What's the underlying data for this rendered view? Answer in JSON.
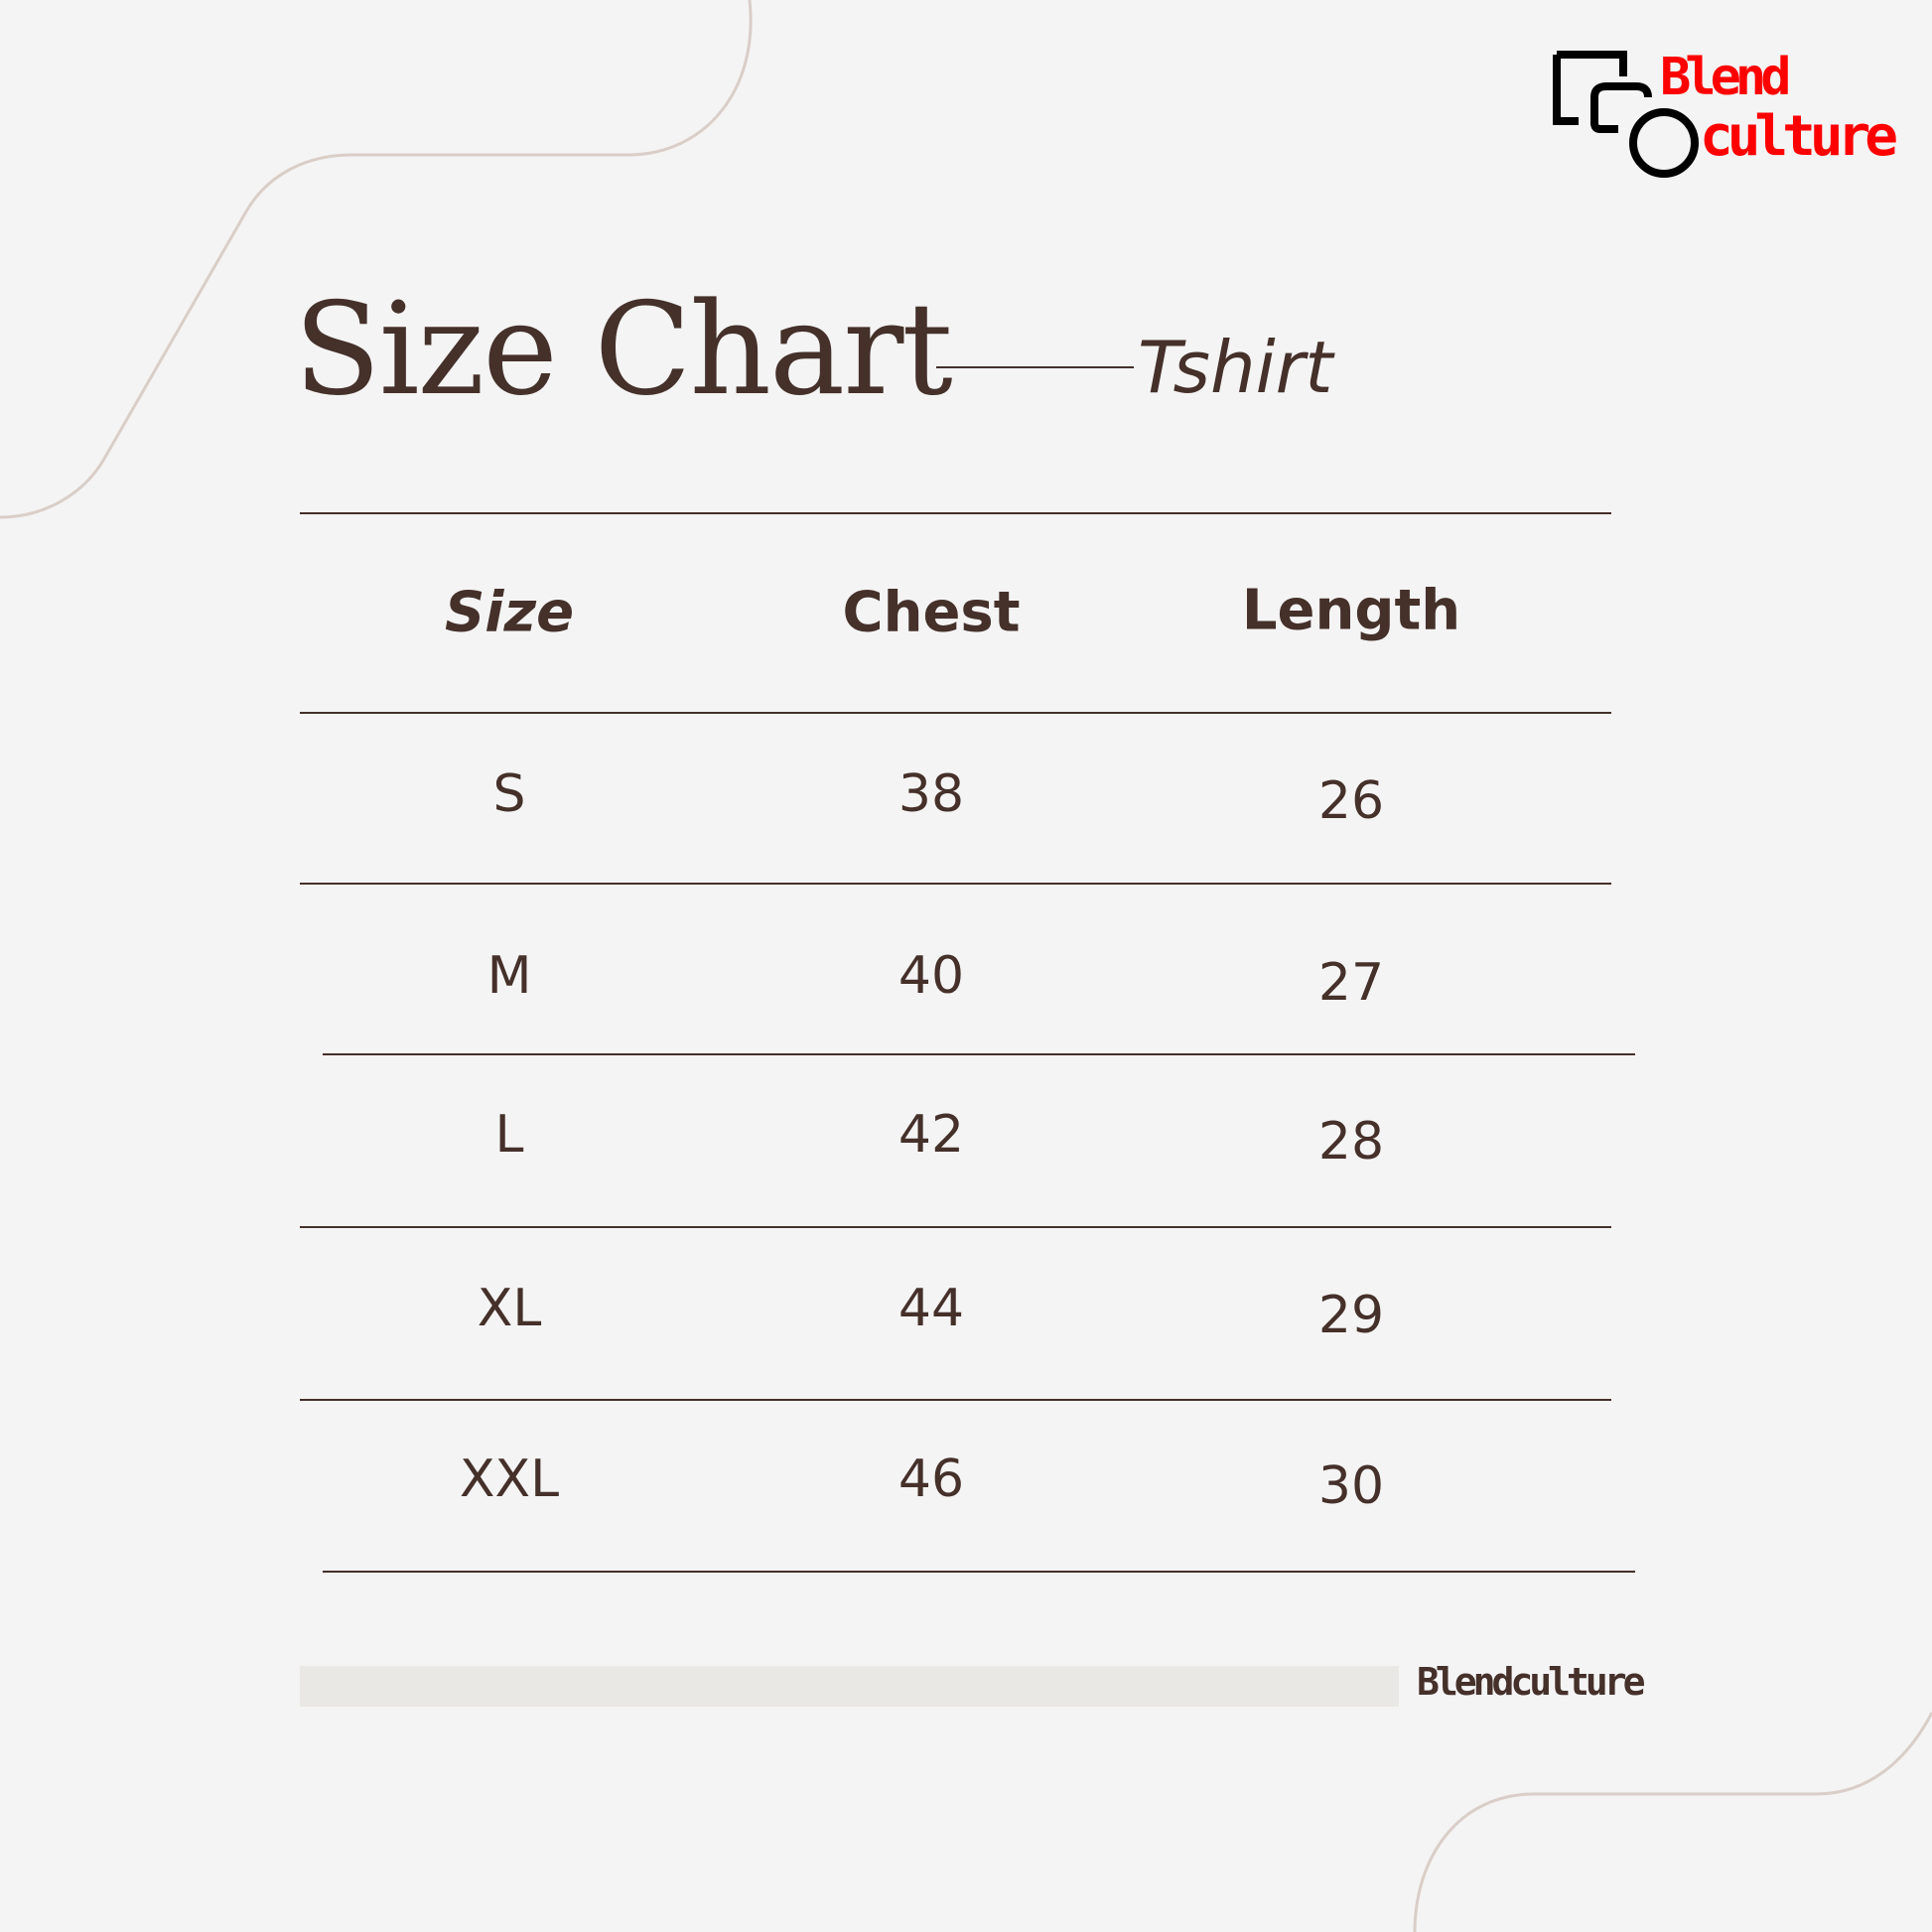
{
  "brand": {
    "logo_text_1": "Blend",
    "logo_text_2": "culture",
    "logo_color": "#ff0000",
    "footer": "Blendculture"
  },
  "title": "Size Chart",
  "subtitle": "Tshirt",
  "colors": {
    "text": "#45302a",
    "background": "#f4f4f4",
    "decor_line": "#d9cec8"
  },
  "table": {
    "headers": [
      "Size",
      "Chest",
      "Length"
    ],
    "rows": [
      [
        "S",
        "38",
        "26"
      ],
      [
        "M",
        "40",
        "27"
      ],
      [
        "L",
        "42",
        "28"
      ],
      [
        "XL",
        "44",
        "29"
      ],
      [
        "XXL",
        "46",
        "30"
      ]
    ]
  }
}
